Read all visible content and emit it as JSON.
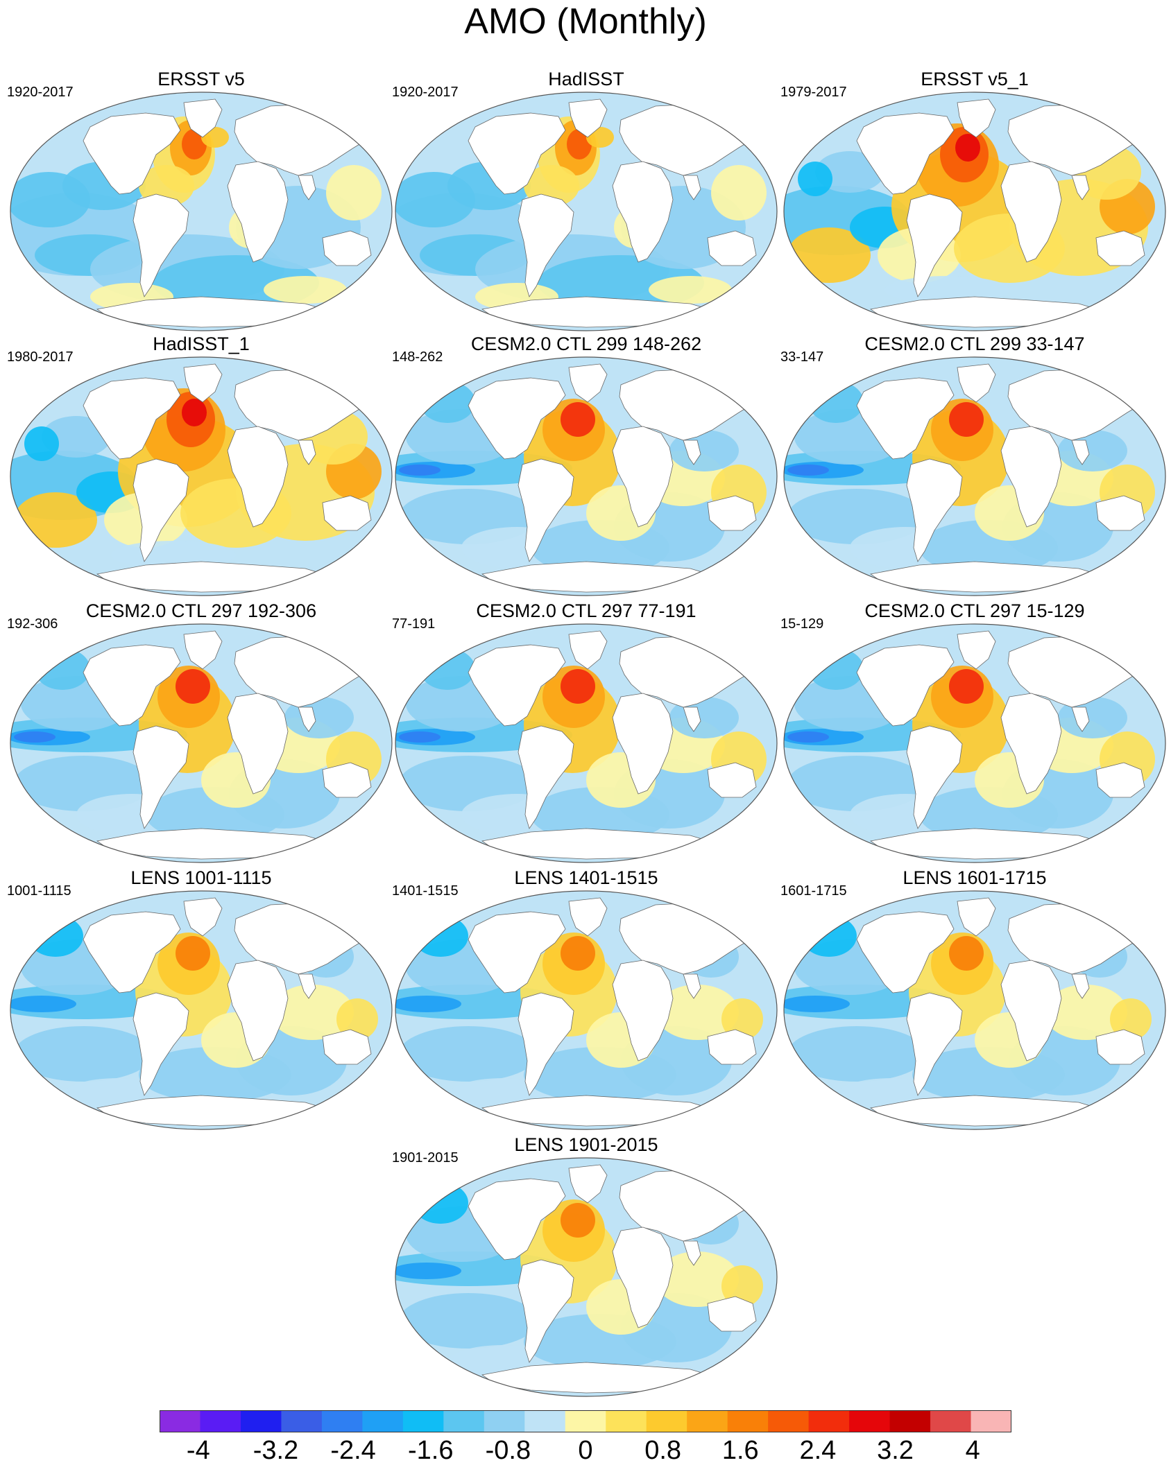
{
  "title": "AMO (Monthly)",
  "panels": [
    {
      "title": "ERSST v5",
      "period": "1920-2017",
      "pattern": "obs"
    },
    {
      "title": "HadISST",
      "period": "1920-2017",
      "pattern": "obs"
    },
    {
      "title": "ERSST v5_1",
      "period": "1979-2017",
      "pattern": "obs-recent"
    },
    {
      "title": "HadISST_1",
      "period": "1980-2017",
      "pattern": "obs-recent"
    },
    {
      "title": "CESM2.0 CTL 299 148-262",
      "period": "148-262",
      "pattern": "model"
    },
    {
      "title": "CESM2.0 CTL 299 33-147",
      "period": "33-147",
      "pattern": "model"
    },
    {
      "title": "CESM2.0 CTL 297 192-306",
      "period": "192-306",
      "pattern": "model"
    },
    {
      "title": "CESM2.0 CTL 297 77-191",
      "period": "77-191",
      "pattern": "model"
    },
    {
      "title": "CESM2.0 CTL 297 15-129",
      "period": "15-129",
      "pattern": "model"
    },
    {
      "title": "LENS 1001-1115",
      "period": "1001-1115",
      "pattern": "lens"
    },
    {
      "title": "LENS 1401-1515",
      "period": "1401-1515",
      "pattern": "lens"
    },
    {
      "title": "LENS 1601-1715",
      "period": "1601-1715",
      "pattern": "lens"
    },
    {
      "title": "LENS 1901-2015",
      "period": "1901-2015",
      "pattern": "lens"
    }
  ],
  "colorbar": {
    "colors": [
      "#8a2be2",
      "#5a1cf4",
      "#1f1ff0",
      "#3a5ee6",
      "#2f7ff2",
      "#1fa0f5",
      "#10bdf5",
      "#5cc6f0",
      "#8fd0f2",
      "#bfe3f6",
      "#fdf6a6",
      "#fde25a",
      "#fdca2e",
      "#fba516",
      "#f98008",
      "#f65a07",
      "#f22d0c",
      "#e5060a",
      "#c30000",
      "#e04848",
      "#f9b5b5"
    ],
    "labels": [
      "-4",
      "-3.2",
      "-2.4",
      "-1.6",
      "-0.8",
      "0",
      "0.8",
      "1.6",
      "2.4",
      "3.2",
      "4"
    ],
    "min": -4.4,
    "max": 4.4,
    "label_values": [
      -4,
      -3.2,
      -2.4,
      -1.6,
      -0.8,
      0,
      0.8,
      1.6,
      2.4,
      3.2,
      4
    ]
  }
}
